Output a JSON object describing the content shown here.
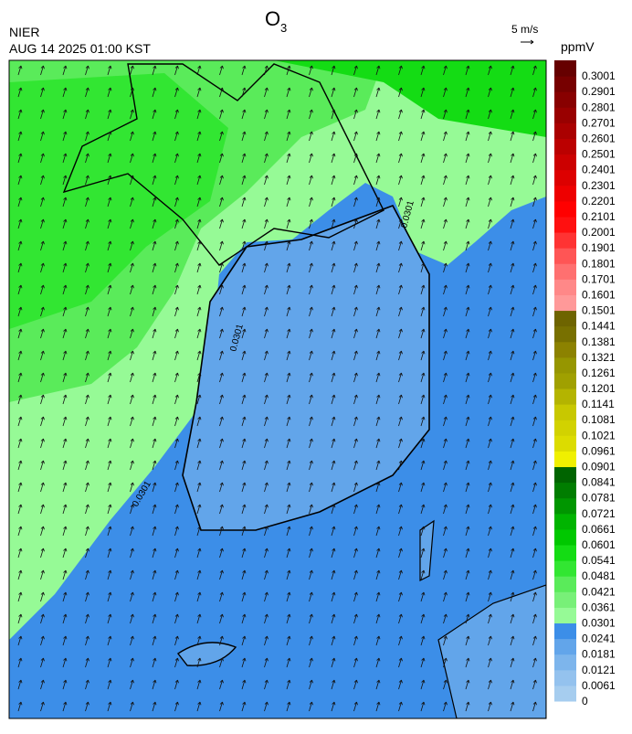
{
  "header": {
    "title": "O",
    "title_sub": "3",
    "agency": "NIER",
    "datetime": "AUG 14 2025 01:00 KST",
    "wind_scale": "5 m/s",
    "unit": "ppmV"
  },
  "map": {
    "contour_labels": [
      "0.0301",
      "0.0301",
      "0.0301"
    ]
  },
  "legend": {
    "items": [
      {
        "label": "0",
        "color": "#a6cdef"
      },
      {
        "label": "0.0061",
        "color": "#94c2ee"
      },
      {
        "label": "0.0121",
        "color": "#7db5ec"
      },
      {
        "label": "0.0181",
        "color": "#62a5ea"
      },
      {
        "label": "0.0241",
        "color": "#3c8ee8"
      },
      {
        "label": "0.0301",
        "color": "#96fa96"
      },
      {
        "label": "0.0361",
        "color": "#78f078"
      },
      {
        "label": "0.0421",
        "color": "#5aeb5a"
      },
      {
        "label": "0.0481",
        "color": "#32e632"
      },
      {
        "label": "0.0541",
        "color": "#14dc14"
      },
      {
        "label": "0.0601",
        "color": "#00c800"
      },
      {
        "label": "0.0661",
        "color": "#00b400"
      },
      {
        "label": "0.0721",
        "color": "#009600"
      },
      {
        "label": "0.0781",
        "color": "#007d00"
      },
      {
        "label": "0.0841",
        "color": "#006400"
      },
      {
        "label": "0.0901",
        "color": "#f0f000"
      },
      {
        "label": "0.0961",
        "color": "#dcdc00"
      },
      {
        "label": "0.1021",
        "color": "#d2d200"
      },
      {
        "label": "0.1081",
        "color": "#c8c800"
      },
      {
        "label": "0.1141",
        "color": "#b4b400"
      },
      {
        "label": "0.1201",
        "color": "#a0a000"
      },
      {
        "label": "0.1261",
        "color": "#969600"
      },
      {
        "label": "0.1321",
        "color": "#8c8200"
      },
      {
        "label": "0.1381",
        "color": "#787000"
      },
      {
        "label": "0.1441",
        "color": "#6e6400"
      },
      {
        "label": "0.1501",
        "color": "#ff9999"
      },
      {
        "label": "0.1601",
        "color": "#ff8888"
      },
      {
        "label": "0.1701",
        "color": "#ff7070"
      },
      {
        "label": "0.1801",
        "color": "#ff5555"
      },
      {
        "label": "0.1901",
        "color": "#ff3333"
      },
      {
        "label": "0.2001",
        "color": "#ff1010"
      },
      {
        "label": "0.2101",
        "color": "#ff0000"
      },
      {
        "label": "0.2201",
        "color": "#ee0000"
      },
      {
        "label": "0.2301",
        "color": "#dd0000"
      },
      {
        "label": "0.2401",
        "color": "#cc0000"
      },
      {
        "label": "0.2501",
        "color": "#bb0000"
      },
      {
        "label": "0.2601",
        "color": "#aa0000"
      },
      {
        "label": "0.2701",
        "color": "#990000"
      },
      {
        "label": "0.2801",
        "color": "#880000"
      },
      {
        "label": "0.2901",
        "color": "#770000"
      },
      {
        "label": "0.3001",
        "color": "#660000"
      }
    ]
  }
}
